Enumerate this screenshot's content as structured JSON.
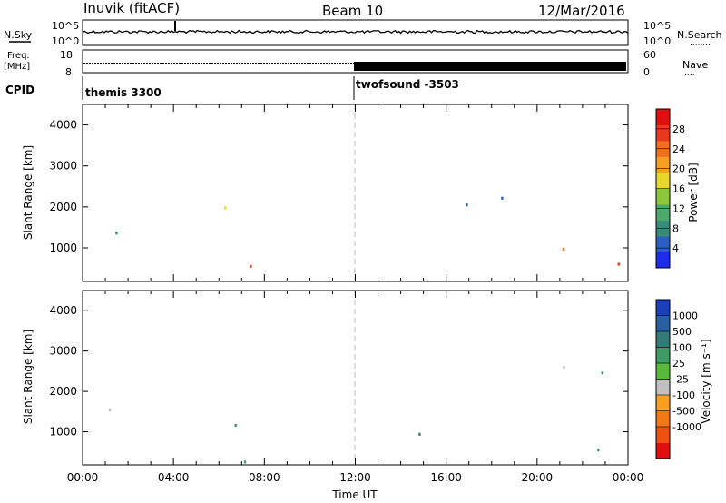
{
  "header": {
    "station": "Inuvik (fitACF)",
    "beam": "Beam 10",
    "date": "12/Mar/2016"
  },
  "strip_labels": {
    "nsky": "N.Sky",
    "nsearch": "N.Search",
    "nsearch_dots": "........",
    "freq_line1": "Freq.",
    "freq_line2": "[MHz]",
    "nave": "Nave",
    "nave_dots": "....",
    "cpid": "CPID",
    "nsky_ticks": [
      "10^5",
      "10^0"
    ],
    "nsearch_ticks": [
      "10^5",
      "10^0"
    ],
    "freq_ticks": [
      "18",
      "8"
    ],
    "nave_ticks": [
      "60",
      "0"
    ]
  },
  "cpid_segments": [
    {
      "label": "themis 3300",
      "start": "00:00"
    },
    {
      "label": "twofsound -3503",
      "start": "12:00"
    }
  ],
  "chart_data": [
    {
      "type": "heatmap",
      "name": "power-panel",
      "xlabel": "",
      "ylabel": "Slant Range [km]",
      "x_range_hours": [
        0,
        24
      ],
      "ylim": [
        180,
        4500
      ],
      "y_ticks": [
        1000,
        2000,
        3000,
        4000
      ],
      "colorbar": {
        "label": "Power [dB]",
        "ticks": [
          "4",
          "8",
          "12",
          "16",
          "20",
          "24",
          "28"
        ],
        "colors": [
          "#1e2ee8",
          "#2c5fbf",
          "#3a8a7a",
          "#4fa86a",
          "#8cc63c",
          "#e8d62a",
          "#f5a020",
          "#f07020",
          "#e83820",
          "#e01010"
        ]
      }
    },
    {
      "type": "heatmap",
      "name": "velocity-panel",
      "xlabel": "Time UT",
      "ylabel": "Slant Range [km]",
      "x_range_hours": [
        0,
        24
      ],
      "x_tick_labels": [
        "00:00",
        "04:00",
        "08:00",
        "12:00",
        "16:00",
        "20:00",
        "00:00"
      ],
      "ylim": [
        180,
        4500
      ],
      "y_ticks": [
        1000,
        2000,
        3000,
        4000
      ],
      "colorbar": {
        "label": "Velocity [m s⁻¹]",
        "ticks": [
          "1000",
          "500",
          "100",
          "25",
          "-25",
          "-100",
          "-500",
          "-1000"
        ],
        "colors": [
          "#1a3fb8",
          "#2a5fa0",
          "#347a78",
          "#3f9a66",
          "#5ab83c",
          "#c0c0c0",
          "#f5a020",
          "#f07818",
          "#ee5010",
          "#e01010"
        ]
      }
    }
  ]
}
